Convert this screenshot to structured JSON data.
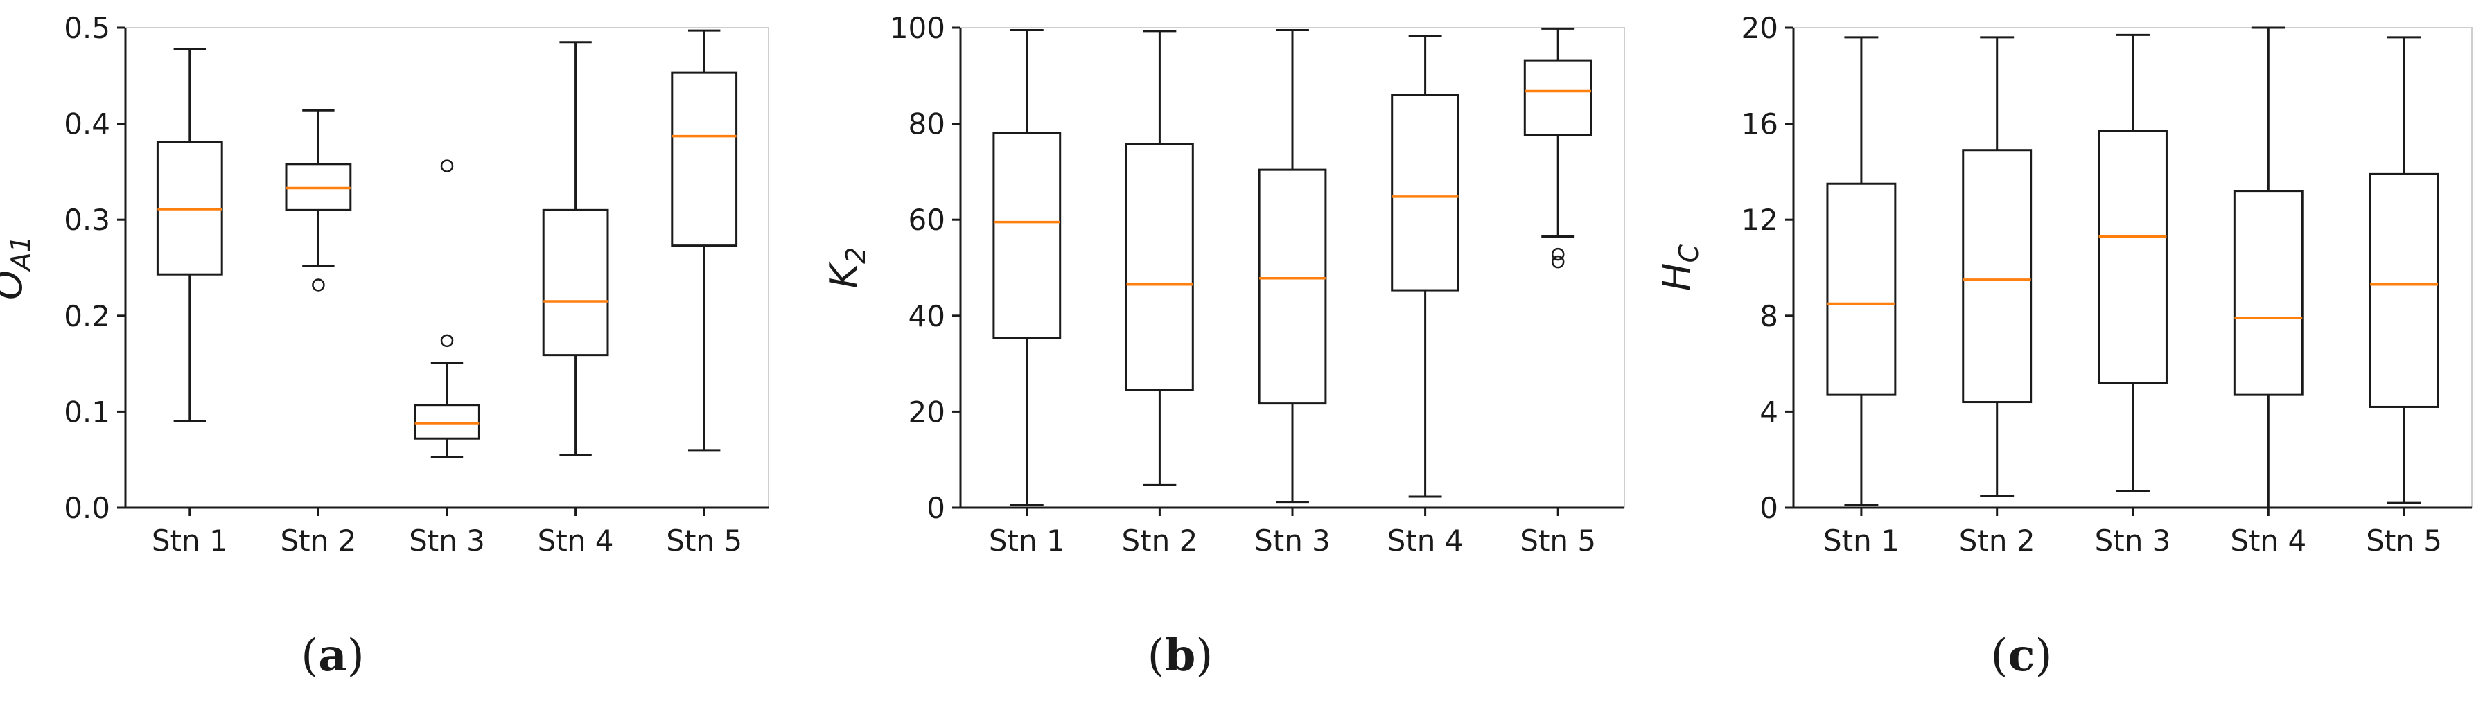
{
  "chart_data": [
    {
      "type": "box",
      "ylabel": "O",
      "ylabel_sub": "A1",
      "caption": "(a)",
      "ylim": [
        0,
        0.5
      ],
      "yticks": [
        "0.0",
        "0.1",
        "0.2",
        "0.3",
        "0.4",
        "0.5"
      ],
      "categories": [
        "Stn 1",
        "Stn 2",
        "Stn 3",
        "Stn 4",
        "Stn 5"
      ],
      "boxes": [
        {
          "min": 0.09,
          "q1": 0.243,
          "median": 0.311,
          "q3": 0.381,
          "max": 0.478,
          "outliers": []
        },
        {
          "min": 0.252,
          "q1": 0.31,
          "median": 0.333,
          "q3": 0.358,
          "max": 0.414,
          "outliers": [
            0.232
          ]
        },
        {
          "min": 0.053,
          "q1": 0.072,
          "median": 0.088,
          "q3": 0.107,
          "max": 0.151,
          "outliers": [
            0.174,
            0.356
          ]
        },
        {
          "min": 0.055,
          "q1": 0.159,
          "median": 0.215,
          "q3": 0.31,
          "max": 0.485,
          "outliers": []
        },
        {
          "min": 0.06,
          "q1": 0.273,
          "median": 0.387,
          "q3": 0.453,
          "max": 0.497,
          "outliers": []
        }
      ]
    },
    {
      "type": "box",
      "ylabel": "K",
      "ylabel_sub": "2",
      "caption": "(b)",
      "ylim": [
        0,
        100
      ],
      "yticks": [
        "0",
        "20",
        "40",
        "60",
        "80",
        "100"
      ],
      "categories": [
        "Stn 1",
        "Stn 2",
        "Stn 3",
        "Stn 4",
        "Stn 5"
      ],
      "boxes": [
        {
          "min": 0.5,
          "q1": 35.3,
          "median": 59.5,
          "q3": 78.0,
          "max": 99.5,
          "outliers": []
        },
        {
          "min": 4.7,
          "q1": 24.5,
          "median": 46.5,
          "q3": 75.7,
          "max": 99.3,
          "outliers": []
        },
        {
          "min": 1.2,
          "q1": 21.7,
          "median": 47.8,
          "q3": 70.4,
          "max": 99.5,
          "outliers": []
        },
        {
          "min": 2.3,
          "q1": 45.3,
          "median": 64.8,
          "q3": 86.0,
          "max": 98.3,
          "outliers": []
        },
        {
          "min": 56.5,
          "q1": 77.7,
          "median": 86.8,
          "q3": 93.2,
          "max": 99.8,
          "outliers": [
            51.2,
            52.8
          ]
        }
      ]
    },
    {
      "type": "box",
      "ylabel": "H",
      "ylabel_sub": "C",
      "caption": "(c)",
      "ylim": [
        0,
        20
      ],
      "yticks": [
        "0",
        "4",
        "8",
        "12",
        "16",
        "20"
      ],
      "categories": [
        "Stn 1",
        "Stn 2",
        "Stn 3",
        "Stn 4",
        "Stn 5"
      ],
      "boxes": [
        {
          "min": 0.1,
          "q1": 4.7,
          "median": 8.5,
          "q3": 13.5,
          "max": 19.6,
          "outliers": []
        },
        {
          "min": 0.5,
          "q1": 4.4,
          "median": 9.5,
          "q3": 14.9,
          "max": 19.6,
          "outliers": []
        },
        {
          "min": 0.7,
          "q1": 5.2,
          "median": 11.3,
          "q3": 15.7,
          "max": 19.7,
          "outliers": []
        },
        {
          "min": 0.0,
          "q1": 4.7,
          "median": 7.9,
          "q3": 13.2,
          "max": 20.0,
          "outliers": []
        },
        {
          "min": 0.2,
          "q1": 4.2,
          "median": 9.3,
          "q3": 13.9,
          "max": 19.6,
          "outliers": []
        }
      ]
    }
  ],
  "colors": {
    "box": "#1a1a1a",
    "median": "#ff7f0e",
    "axis": "#1a1a1a",
    "text": "#1a1a1a"
  }
}
